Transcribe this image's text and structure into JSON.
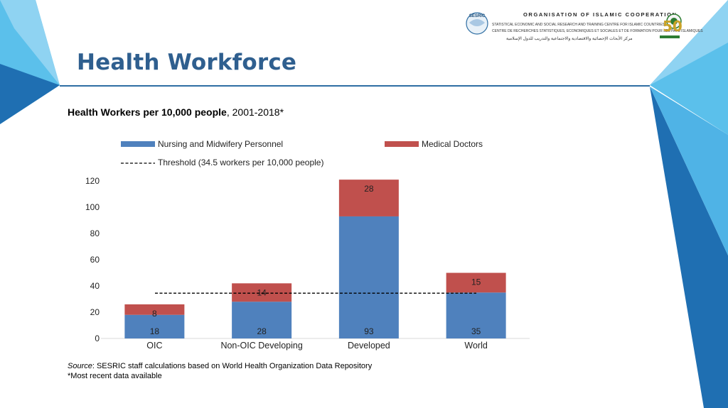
{
  "slide": {
    "title": "Health Workforce",
    "org": {
      "name": "ORGANISATION OF ISLAMIC COOPERATION",
      "line1": "STATISTICAL ECONOMIC AND SOCIAL RESEARCH AND TRAINING CENTRE FOR ISLAMIC COUNTRIES",
      "line2": "CENTRE DE RECHERCHES STATISTIQUES, ECONOMIQUES ET SOCIALES ET DE FORMATION POUR LES PAYS ISLAMIQUES",
      "line3": "مركز الأبحاث الإحصائية والاقتصادية والاجتماعية والتدريب للدول الإسلامية",
      "sesric_label": "SESRIC",
      "oic50_label": "50"
    },
    "source_label": "Source",
    "source_text": ": SESRIC staff calculations based on World Health Organization Data Repository",
    "footnote": "*Most recent data available",
    "colors": {
      "title": "#2f5f8f",
      "nursing": "#4f81bd",
      "doctors": "#c0504d",
      "accent_light": "#5bc0eb",
      "accent_dark": "#1f6fb2"
    }
  },
  "chart_data": {
    "type": "bar",
    "stacked": true,
    "title": "Health Workers per 10,000 people",
    "subtitle": ", 2001-2018*",
    "categories": [
      "OIC",
      "Non-OIC Developing",
      "Developed",
      "World"
    ],
    "series": [
      {
        "name": "Nursing and Midwifery Personnel",
        "values": [
          18,
          28,
          93,
          35
        ],
        "color": "#4f81bd"
      },
      {
        "name": "Medical Doctors",
        "values": [
          8,
          14,
          28,
          15
        ],
        "color": "#c0504d"
      }
    ],
    "threshold": {
      "name": "Threshold (34.5 workers per 10,000 people)",
      "value": 34.5
    },
    "y_ticks": [
      "0",
      "20",
      "40",
      "60",
      "80",
      "100",
      "120"
    ],
    "ylim": [
      0,
      120
    ],
    "grid": false,
    "legend_position": "top"
  }
}
